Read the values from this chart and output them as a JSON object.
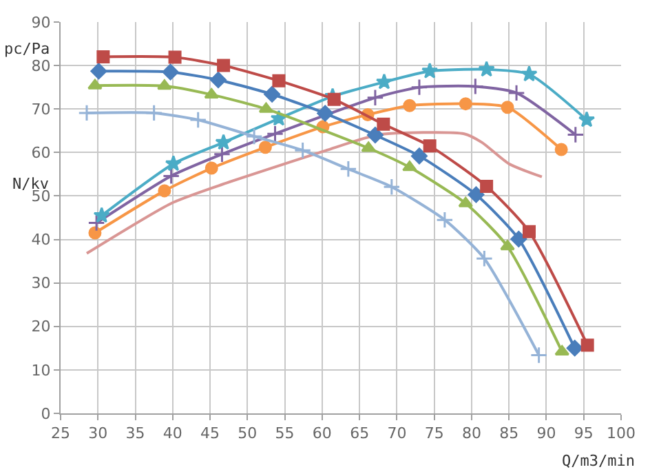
{
  "chart_data": {
    "type": "line",
    "ylabel": "pc/Pa",
    "xlabel": "Q/m3/min",
    "annotations": [
      "N/kv"
    ],
    "xlim": [
      25,
      100
    ],
    "xticks": [
      25,
      30,
      35,
      40,
      45,
      50,
      55,
      60,
      65,
      70,
      75,
      80,
      85,
      90,
      95,
      100
    ],
    "ylim": [
      0,
      90
    ],
    "yticks": [
      0,
      10,
      20,
      30,
      40,
      50,
      60,
      70,
      80,
      90
    ],
    "grid": true,
    "series": [
      {
        "color": "#be4b48",
        "marker": "square",
        "x": [
          30.7,
          40.3,
          46.8,
          54.2,
          61.6,
          68.2,
          74.4,
          82.0,
          87.7,
          95.5
        ],
        "values": [
          82.0,
          81.9,
          80.0,
          76.5,
          72.2,
          66.5,
          61.5,
          52.2,
          41.8,
          15.7
        ]
      },
      {
        "color": "#4a7ebb",
        "marker": "diamond",
        "x": [
          30.1,
          39.7,
          46.1,
          53.3,
          60.4,
          67.1,
          73.0,
          80.6,
          86.3,
          93.8
        ],
        "values": [
          78.7,
          78.5,
          76.7,
          73.4,
          69.0,
          64.0,
          59.2,
          50.3,
          40.1,
          15.0
        ]
      },
      {
        "color": "#98b954",
        "marker": "triangle",
        "x": [
          29.6,
          38.9,
          45.2,
          52.5,
          66.2,
          71.7,
          79.2,
          84.8,
          92.1
        ],
        "values": [
          75.4,
          75.3,
          73.3,
          70.0,
          61.0,
          56.6,
          48.3,
          38.4,
          14.2
        ]
      },
      {
        "color": "#95b3d7",
        "marker": "cross",
        "x": [
          28.5,
          37.5,
          43.4,
          50.9,
          57.4,
          63.5,
          69.3,
          76.4,
          81.7,
          89.0
        ],
        "values": [
          69.1,
          69.1,
          67.5,
          63.7,
          60.5,
          56.2,
          52.1,
          44.5,
          35.6,
          13.4
        ]
      },
      {
        "color": "#4bacc6",
        "marker": "star",
        "x": [
          30.5,
          40.1,
          46.8,
          54.2,
          61.4,
          68.3,
          74.4,
          82.0,
          87.7,
          95.4
        ],
        "values": [
          45.5,
          57.4,
          62.3,
          67.8,
          72.9,
          76.2,
          78.7,
          79.1,
          78.0,
          67.5
        ]
      },
      {
        "color": "#8064a2",
        "marker": "cross",
        "x": [
          29.8,
          39.8,
          46.6,
          53.7,
          67.1,
          73.0,
          80.5,
          86.0,
          93.9
        ],
        "values": [
          43.8,
          54.6,
          59.6,
          64.3,
          72.6,
          75.0,
          75.2,
          73.7,
          64.1
        ]
      },
      {
        "color": "#f79646",
        "marker": "circle",
        "x": [
          29.6,
          38.9,
          45.2,
          52.4,
          60.1,
          66.1,
          71.7,
          79.2,
          84.8,
          92.0
        ],
        "values": [
          41.5,
          51.2,
          56.4,
          61.2,
          65.9,
          68.7,
          70.8,
          71.2,
          70.4,
          60.7
        ]
      },
      {
        "color": "#d99694",
        "marker": "none",
        "x": [
          28.5,
          39.8,
          46.2,
          60.4,
          67.6,
          79.0,
          81.4,
          85.0,
          89.4
        ],
        "values": [
          36.8,
          48.3,
          52.4,
          60.4,
          64.1,
          64.3,
          62.3,
          57.4,
          54.4
        ]
      }
    ]
  }
}
